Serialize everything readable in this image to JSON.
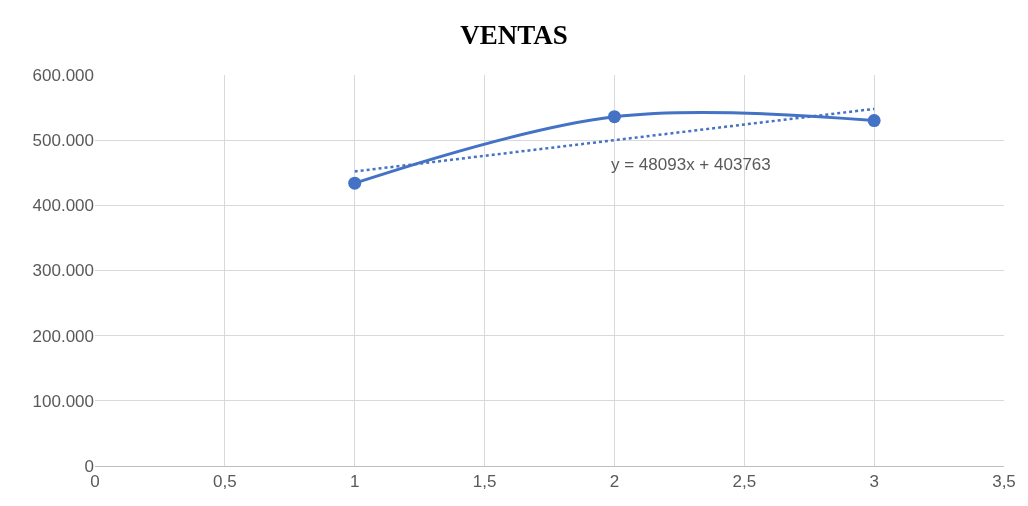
{
  "chart_data": {
    "type": "line",
    "title": "VENTAS",
    "series": [
      {
        "color": "#4472c4",
        "x": [
          1,
          2,
          3
        ],
        "values": [
          434000,
          536000,
          530000
        ],
        "marker": "circle",
        "line_style": "solid"
      },
      {
        "color": "#4472c4",
        "x": [
          1,
          3
        ],
        "values": [
          452000,
          548000
        ],
        "marker": "none",
        "line_style": "dotted"
      }
    ],
    "annotations": [
      "y = 48093x + 403763"
    ],
    "xlim": [
      0,
      3.5
    ],
    "xticks": [
      0,
      {
        "value": 0.5,
        "label": "0,5"
      },
      1,
      {
        "value": 1.5,
        "label": "1,5"
      },
      2,
      {
        "value": 2.5,
        "label": "2,5"
      },
      3,
      {
        "value": 3.5,
        "label": "3,5"
      }
    ],
    "ylim": [
      0,
      600000
    ],
    "yticks": [
      0,
      {
        "value": 100000,
        "label": "100.000"
      },
      {
        "value": 200000,
        "label": "200.000"
      },
      {
        "value": 300000,
        "label": "300.000"
      },
      {
        "value": 400000,
        "label": "400.000"
      },
      {
        "value": 500000,
        "label": "500.000"
      },
      {
        "value": 600000,
        "label": "600.000"
      }
    ],
    "grid": true
  }
}
